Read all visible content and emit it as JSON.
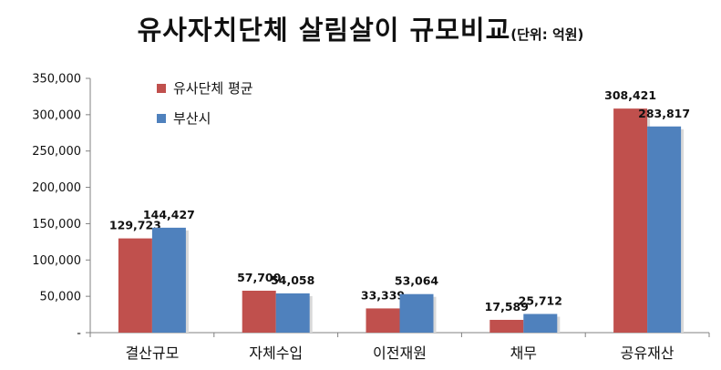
{
  "title": {
    "main": "유사자치단체 살림살이 규모비교",
    "unit": "(단위: 억원)"
  },
  "colors": {
    "series1": "#c0504d",
    "series2": "#4f81bd",
    "axis": "#808080"
  },
  "chart_data": {
    "type": "bar",
    "title": "유사자치단체 살림살이 규모비교",
    "subtitle": "(단위: 억원)",
    "xlabel": "",
    "ylabel": "",
    "categories": [
      "결산규모",
      "자체수입",
      "이전재원",
      "채무",
      "공유재산"
    ],
    "series": [
      {
        "name": "유사단체 평균",
        "values": [
          129723,
          57700,
          33339,
          17589,
          308421
        ],
        "labels": [
          "129,723",
          "57,700",
          "33,339",
          "17,589",
          "308,421"
        ]
      },
      {
        "name": "부산시",
        "values": [
          144427,
          54058,
          53064,
          25712,
          283817
        ],
        "labels": [
          "144,427",
          "54,058",
          "53,064",
          "25,712",
          "283,817"
        ]
      }
    ],
    "ylim": [
      0,
      350000
    ],
    "yticks": [
      0,
      50000,
      100000,
      150000,
      200000,
      250000,
      300000,
      350000
    ],
    "ytick_labels": [
      "-",
      "50,000",
      "100,000",
      "150,000",
      "200,000",
      "250,000",
      "300,000",
      "350,000"
    ],
    "grid": false,
    "legend": "top-left"
  }
}
